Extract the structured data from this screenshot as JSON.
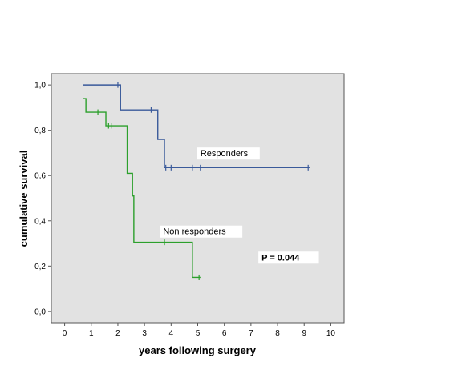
{
  "chart_data": {
    "type": "line",
    "title": "",
    "xlabel": "years following surgery",
    "ylabel": "cumulative survival",
    "xlim": [
      -0.5,
      10.5
    ],
    "ylim": [
      -0.05,
      1.05
    ],
    "xticks": [
      0,
      1,
      2,
      3,
      4,
      5,
      6,
      7,
      8,
      9,
      10
    ],
    "xtick_labels": [
      "0",
      "1",
      "2",
      "3",
      "4",
      "5",
      "6",
      "7",
      "8",
      "9",
      "10"
    ],
    "yticks": [
      0,
      0.2,
      0.4,
      0.6,
      0.8,
      1.0
    ],
    "ytick_labels": [
      "0,0",
      "0,2",
      "0,4",
      "0,6",
      "0,8",
      "1,0"
    ],
    "plot_background": "#e2e2e2",
    "grid": false,
    "series": [
      {
        "name": "Responders",
        "color": "#3a5a9a",
        "steps": [
          {
            "x": 0.7,
            "y": 1.0
          },
          {
            "x": 2.1,
            "y": 0.89
          },
          {
            "x": 3.5,
            "y": 0.76
          },
          {
            "x": 3.75,
            "y": 0.635
          },
          {
            "x": 9.2,
            "y": 0.635
          }
        ],
        "censored": [
          {
            "x": 2.0,
            "y": 1.0
          },
          {
            "x": 3.25,
            "y": 0.89
          },
          {
            "x": 3.8,
            "y": 0.635
          },
          {
            "x": 4.0,
            "y": 0.635
          },
          {
            "x": 4.8,
            "y": 0.635
          },
          {
            "x": 5.1,
            "y": 0.635
          },
          {
            "x": 9.15,
            "y": 0.635
          }
        ]
      },
      {
        "name": "Non responders",
        "color": "#2ca02c",
        "steps": [
          {
            "x": 0.7,
            "y": 0.94
          },
          {
            "x": 0.8,
            "y": 0.88
          },
          {
            "x": 1.55,
            "y": 0.82
          },
          {
            "x": 2.35,
            "y": 0.61
          },
          {
            "x": 2.55,
            "y": 0.51
          },
          {
            "x": 2.6,
            "y": 0.305
          },
          {
            "x": 4.8,
            "y": 0.15
          },
          {
            "x": 5.1,
            "y": 0.15
          }
        ],
        "censored": [
          {
            "x": 1.25,
            "y": 0.88
          },
          {
            "x": 1.65,
            "y": 0.82
          },
          {
            "x": 1.75,
            "y": 0.82
          },
          {
            "x": 3.75,
            "y": 0.305
          },
          {
            "x": 5.05,
            "y": 0.15
          }
        ]
      }
    ],
    "annotations": [
      {
        "text": "Responders",
        "x": 5.1,
        "y": 0.685,
        "bold": false
      },
      {
        "text": "Non responders",
        "x": 3.7,
        "y": 0.34,
        "bold": false
      },
      {
        "text": "P = 0.044",
        "x": 7.4,
        "y": 0.225,
        "bold": true
      }
    ]
  }
}
